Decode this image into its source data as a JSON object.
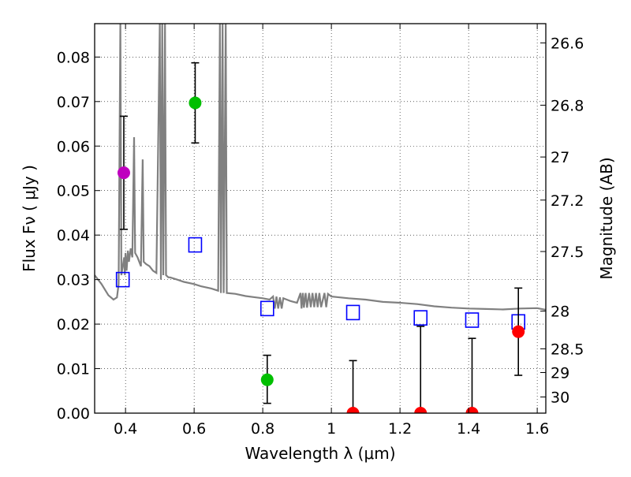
{
  "chart_data": {
    "type": "scatter",
    "xlabel": "Wavelength  λ (μm)",
    "ylabel": "Flux  Fν  ( μJy )",
    "y2label": "Magnitude (AB)",
    "xlim": [
      0.31,
      1.625
    ],
    "ylim": [
      0.0,
      0.0875
    ],
    "grid": true,
    "xticks": [
      0.4,
      0.6,
      0.8,
      1.0,
      1.2,
      1.4,
      1.6
    ],
    "xtick_labels": [
      "0.4",
      "0.6",
      "0.8",
      "1",
      "1.2",
      "1.4",
      "1.6"
    ],
    "yticks": [
      0.0,
      0.01,
      0.02,
      0.03,
      0.04,
      0.05,
      0.06,
      0.07,
      0.08
    ],
    "ytick_labels": [
      "0.00",
      "0.01",
      "0.02",
      "0.03",
      "0.04",
      "0.05",
      "0.06",
      "0.07",
      "0.08"
    ],
    "mag_ticks": [
      {
        "mag": 26.6,
        "label": "26.6"
      },
      {
        "mag": 26.8,
        "label": "26.8"
      },
      {
        "mag": 27.0,
        "label": "27"
      },
      {
        "mag": 27.2,
        "label": "27.2"
      },
      {
        "mag": 27.5,
        "label": "27.5"
      },
      {
        "mag": 28.0,
        "label": "28"
      },
      {
        "mag": 28.5,
        "label": "28.5"
      },
      {
        "mag": 29.0,
        "label": "29"
      },
      {
        "mag": 30.0,
        "label": "30"
      }
    ],
    "observed": [
      {
        "x": 0.395,
        "y": 0.054,
        "err_low": 0.0413,
        "err_high": 0.0667,
        "color": "#bf00bf"
      },
      {
        "x": 0.603,
        "y": 0.0697,
        "err_low": 0.0607,
        "err_high": 0.0787,
        "color": "#00bf00"
      },
      {
        "x": 0.813,
        "y": 0.0075,
        "err_low": 0.0022,
        "err_high": 0.013,
        "color": "#00bf00"
      },
      {
        "x": 1.063,
        "y": 0.0,
        "err_low": 0.0,
        "err_high": 0.0118,
        "color": "#ff0000"
      },
      {
        "x": 1.26,
        "y": 0.0,
        "err_low": 0.0,
        "err_high": 0.0195,
        "color": "#ff0000"
      },
      {
        "x": 1.41,
        "y": 0.0,
        "err_low": 0.0,
        "err_high": 0.0168,
        "color": "#ff0000"
      },
      {
        "x": 1.545,
        "y": 0.0183,
        "err_low": 0.0085,
        "err_high": 0.0281,
        "color": "#ff0000"
      }
    ],
    "model_photometry": [
      {
        "x": 0.392,
        "y": 0.03
      },
      {
        "x": 0.603,
        "y": 0.0378
      },
      {
        "x": 0.813,
        "y": 0.0235
      },
      {
        "x": 1.063,
        "y": 0.0226
      },
      {
        "x": 1.26,
        "y": 0.0214
      },
      {
        "x": 1.41,
        "y": 0.0209
      },
      {
        "x": 1.545,
        "y": 0.0205
      }
    ],
    "model_spectrum": [
      [
        0.31,
        0.031
      ],
      [
        0.33,
        0.029
      ],
      [
        0.35,
        0.0265
      ],
      [
        0.365,
        0.0255
      ],
      [
        0.375,
        0.026
      ],
      [
        0.38,
        0.029
      ],
      [
        0.385,
        0.0875
      ],
      [
        0.388,
        0.031
      ],
      [
        0.392,
        0.033
      ],
      [
        0.396,
        0.035
      ],
      [
        0.398,
        0.031
      ],
      [
        0.4,
        0.036
      ],
      [
        0.403,
        0.032
      ],
      [
        0.407,
        0.0365
      ],
      [
        0.41,
        0.034
      ],
      [
        0.415,
        0.037
      ],
      [
        0.42,
        0.035
      ],
      [
        0.425,
        0.062
      ],
      [
        0.428,
        0.036
      ],
      [
        0.435,
        0.035
      ],
      [
        0.44,
        0.034
      ],
      [
        0.445,
        0.033
      ],
      [
        0.45,
        0.057
      ],
      [
        0.453,
        0.034
      ],
      [
        0.46,
        0.0335
      ],
      [
        0.47,
        0.033
      ],
      [
        0.48,
        0.032
      ],
      [
        0.49,
        0.0315
      ],
      [
        0.5,
        0.0875
      ],
      [
        0.503,
        0.03
      ],
      [
        0.507,
        0.0875
      ],
      [
        0.51,
        0.031
      ],
      [
        0.515,
        0.0875
      ],
      [
        0.518,
        0.031
      ],
      [
        0.525,
        0.0305
      ],
      [
        0.53,
        0.0305
      ],
      [
        0.55,
        0.03
      ],
      [
        0.57,
        0.0295
      ],
      [
        0.6,
        0.029
      ],
      [
        0.62,
        0.0285
      ],
      [
        0.65,
        0.028
      ],
      [
        0.67,
        0.0275
      ],
      [
        0.675,
        0.0875
      ],
      [
        0.678,
        0.027
      ],
      [
        0.683,
        0.0875
      ],
      [
        0.686,
        0.027
      ],
      [
        0.692,
        0.0875
      ],
      [
        0.695,
        0.027
      ],
      [
        0.72,
        0.0268
      ],
      [
        0.75,
        0.0263
      ],
      [
        0.78,
        0.026
      ],
      [
        0.8,
        0.0258
      ],
      [
        0.82,
        0.0255
      ],
      [
        0.83,
        0.0262
      ],
      [
        0.835,
        0.0235
      ],
      [
        0.84,
        0.0262
      ],
      [
        0.845,
        0.0235
      ],
      [
        0.85,
        0.026
      ],
      [
        0.855,
        0.0235
      ],
      [
        0.86,
        0.0258
      ],
      [
        0.87,
        0.0255
      ],
      [
        0.88,
        0.0252
      ],
      [
        0.89,
        0.025
      ],
      [
        0.9,
        0.0248
      ],
      [
        0.91,
        0.027
      ],
      [
        0.913,
        0.0235
      ],
      [
        0.917,
        0.027
      ],
      [
        0.92,
        0.0237
      ],
      [
        0.925,
        0.027
      ],
      [
        0.929,
        0.0237
      ],
      [
        0.935,
        0.027
      ],
      [
        0.94,
        0.0238
      ],
      [
        0.945,
        0.027
      ],
      [
        0.95,
        0.0238
      ],
      [
        0.955,
        0.027
      ],
      [
        0.96,
        0.0238
      ],
      [
        0.965,
        0.027
      ],
      [
        0.97,
        0.0238
      ],
      [
        0.98,
        0.027
      ],
      [
        0.985,
        0.0238
      ],
      [
        0.99,
        0.0268
      ],
      [
        1.0,
        0.0262
      ],
      [
        1.05,
        0.0258
      ],
      [
        1.1,
        0.0255
      ],
      [
        1.15,
        0.025
      ],
      [
        1.2,
        0.0248
      ],
      [
        1.25,
        0.0245
      ],
      [
        1.3,
        0.024
      ],
      [
        1.35,
        0.0237
      ],
      [
        1.4,
        0.0235
      ],
      [
        1.45,
        0.0234
      ],
      [
        1.5,
        0.0233
      ],
      [
        1.55,
        0.0235
      ],
      [
        1.6,
        0.0236
      ],
      [
        1.625,
        0.0232
      ]
    ]
  }
}
